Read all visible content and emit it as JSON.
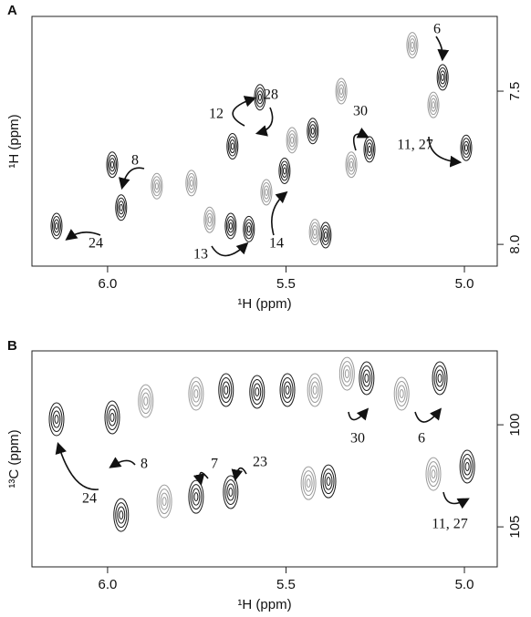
{
  "chart_data": [
    {
      "type": "scatter",
      "panel_label": "A",
      "xlabel": "¹H (ppm)",
      "ylabel": "¹H (ppm)",
      "xlim": [
        6.212,
        4.908
      ],
      "ylim": [
        7.256,
        8.071
      ],
      "xticks": [
        {
          "value": 6.0,
          "label": "6.0"
        },
        {
          "value": 5.5,
          "label": "5.5"
        },
        {
          "value": 5.0,
          "label": "5.0"
        }
      ],
      "yticks": [
        7.5,
        {
          "value": 8.0,
          "label": "8.0"
        }
      ],
      "peaks": [
        {
          "color": "#1a1a1a",
          "x": [
            6.143,
            5.987,
            5.962,
            5.65,
            5.573,
            5.655,
            5.604,
            5.504,
            5.425,
            5.389,
            5.266,
            5.061,
            4.995
          ],
          "y": [
            7.94,
            7.74,
            7.88,
            7.68,
            7.52,
            7.94,
            7.95,
            7.76,
            7.63,
            7.97,
            7.69,
            7.455,
            7.685
          ]
        },
        {
          "color": "#9a9a9a",
          "x": [
            5.146,
            5.483,
            5.317,
            5.555,
            5.714,
            5.419,
            5.862,
            5.765,
            5.087,
            5.345
          ],
          "y": [
            7.35,
            7.66,
            7.74,
            7.83,
            7.92,
            7.96,
            7.81,
            7.8,
            7.545,
            7.5
          ]
        }
      ],
      "annotations": [
        "6",
        "12",
        "28",
        "30",
        "8",
        "11, 27",
        "24",
        "13",
        "14"
      ]
    },
    {
      "type": "scatter",
      "panel_label": "B",
      "xlabel": "¹H (ppm)",
      "ylabel": "¹³C (ppm)",
      "xlim": [
        6.212,
        4.908
      ],
      "ylim": [
        96.38,
        106.96
      ],
      "xticks": [
        {
          "value": 6.0,
          "label": "6.0"
        },
        {
          "value": 5.5,
          "label": "5.5"
        },
        {
          "value": 5.0,
          "label": "5.0"
        }
      ],
      "yticks": [
        100,
        105
      ],
      "peaks": [
        {
          "color": "#1a1a1a",
          "x": [
            6.143,
            5.987,
            5.962,
            5.752,
            5.655,
            5.668,
            5.581,
            5.496,
            5.381,
            5.274,
            5.069,
            4.992
          ],
          "y": [
            99.73,
            99.64,
            104.42,
            103.53,
            103.3,
            98.3,
            98.39,
            98.3,
            102.77,
            97.72,
            97.72,
            102.05
          ]
        },
        {
          "color": "#9a9a9a",
          "x": [
            5.893,
            5.752,
            5.329,
            5.176,
            5.437,
            5.087,
            5.841,
            5.419
          ],
          "y": [
            98.84,
            98.48,
            97.5,
            98.48,
            102.86,
            102.41,
            103.75,
            98.3
          ]
        }
      ],
      "annotations": [
        "8",
        "7",
        "23",
        "30",
        "6",
        "24",
        "11, 27"
      ]
    }
  ]
}
